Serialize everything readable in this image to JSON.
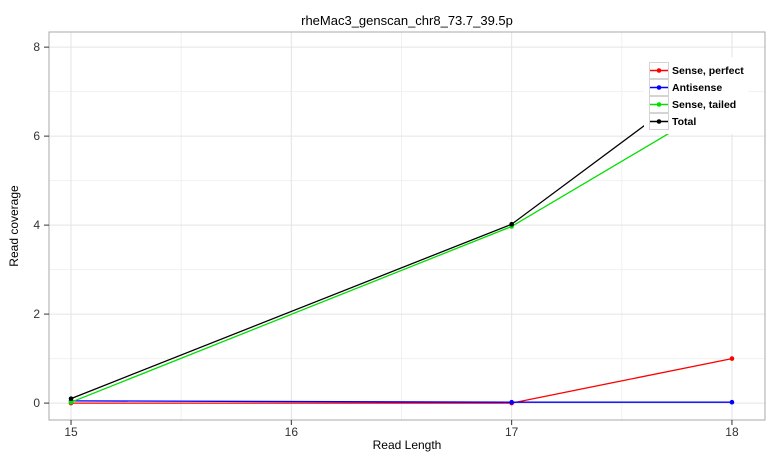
{
  "chart_data": {
    "type": "line",
    "title": "rheMac3_genscan_chr8_73.7_39.5p",
    "xlabel": "Read Length",
    "ylabel": "Read coverage",
    "x": [
      15,
      17,
      18
    ],
    "series": [
      {
        "name": "Sense, perfect",
        "color": "#ff0000",
        "values": [
          0,
          0,
          1
        ]
      },
      {
        "name": "Antisense",
        "color": "#0000ff",
        "values": [
          0.05,
          0.02,
          0.02
        ]
      },
      {
        "name": "Sense, tailed",
        "color": "#00e000",
        "values": [
          0.02,
          3.97,
          6.9
        ]
      },
      {
        "name": "Total",
        "color": "#000000",
        "values": [
          0.1,
          4.02,
          7.7
        ]
      }
    ],
    "axes": {
      "xlim": [
        14.9,
        18.15
      ],
      "ylim": [
        -0.38,
        8.34
      ],
      "xticks": [
        15,
        16,
        17,
        18
      ],
      "yticks": [
        0,
        2,
        4,
        6,
        8
      ],
      "xminor": [
        15.5,
        16.5,
        17.5
      ],
      "yminor": [
        1,
        3,
        5,
        7
      ],
      "grid": "on"
    },
    "legend": {
      "position": "top-right-inside",
      "entries": [
        "Sense, perfect",
        "Antisense",
        "Sense, tailed",
        "Total"
      ]
    },
    "style_colors": {
      "panel_border": "#a9a9a9",
      "grid_major": "#e4e4e4",
      "grid_minor": "#f1f1f1",
      "tick": "#333333",
      "tick_label": "#333333"
    }
  }
}
